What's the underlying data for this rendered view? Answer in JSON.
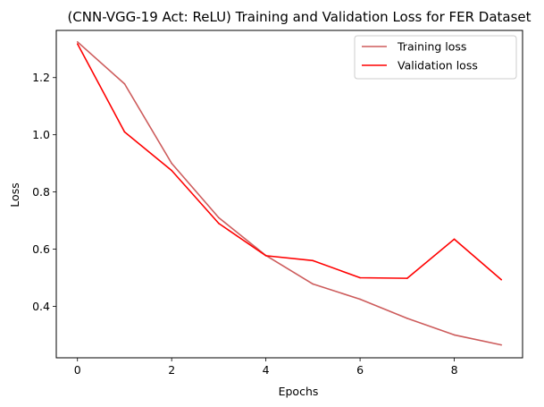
{
  "chart_data": {
    "type": "line",
    "title": "(CNN-VGG-19 Act: ReLU) Training and Validation Loss for FER Dataset",
    "xlabel": "Epochs",
    "ylabel": "Loss",
    "x": [
      0,
      1,
      2,
      3,
      4,
      5,
      6,
      7,
      8,
      9
    ],
    "xlim": [
      -0.45,
      9.45
    ],
    "ylim": [
      0.22,
      1.365
    ],
    "xticks": [
      0,
      2,
      4,
      6,
      8
    ],
    "yticks": [
      0.4,
      0.6,
      0.8,
      1.0,
      1.2
    ],
    "ytick_labels": [
      "0.4",
      "0.6",
      "0.8",
      "1.0",
      "1.2"
    ],
    "grid": false,
    "legend_position": "top-right",
    "series": [
      {
        "name": "Training loss",
        "color": "#cd5c5c",
        "values": [
          1.325,
          1.178,
          0.9,
          0.71,
          0.578,
          0.478,
          0.425,
          0.358,
          0.3,
          0.265
        ]
      },
      {
        "name": "Validation loss",
        "color": "#ff0000",
        "values": [
          1.318,
          1.01,
          0.875,
          0.69,
          0.577,
          0.56,
          0.5,
          0.498,
          0.635,
          0.493
        ]
      }
    ]
  }
}
